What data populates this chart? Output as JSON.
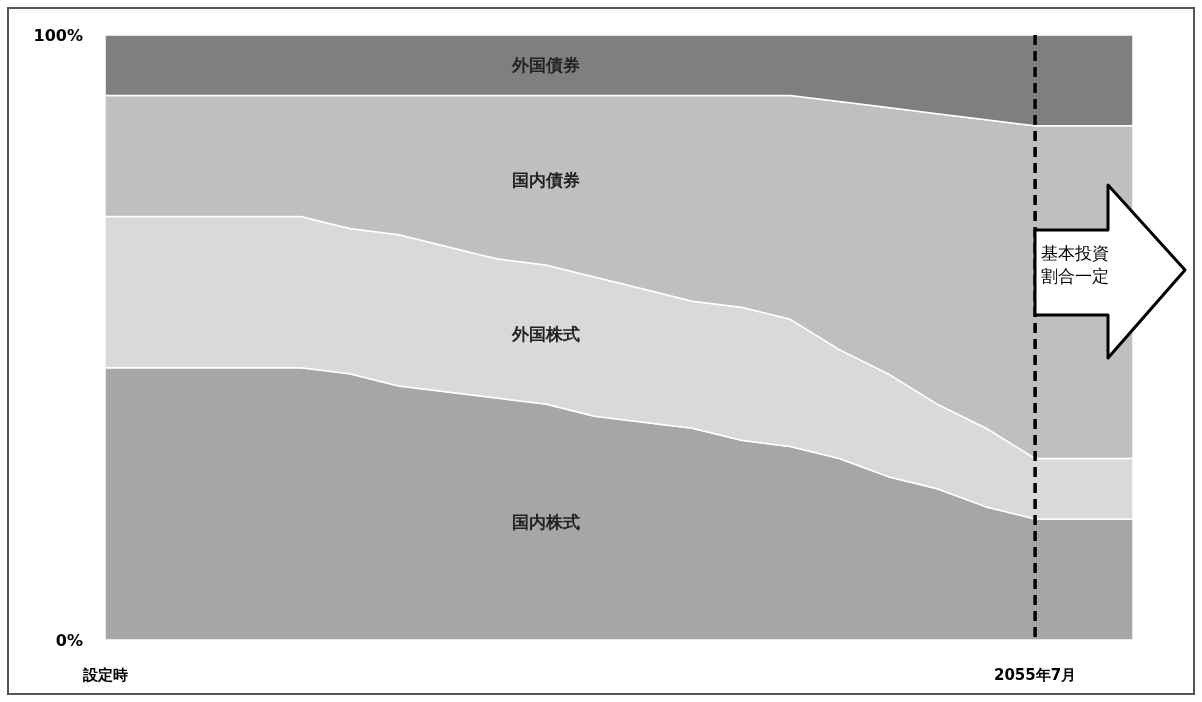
{
  "chart_data": {
    "type": "area",
    "stacked": true,
    "categories": [
      "設定時",
      null,
      null,
      null,
      null,
      null,
      null,
      null,
      null,
      null,
      null,
      null,
      null,
      null,
      null,
      null,
      null,
      null,
      null,
      "2055年7月",
      null,
      null
    ],
    "ylim": [
      0,
      100
    ],
    "yticks": [
      {
        "value": 0,
        "label": "0%"
      },
      {
        "value": 100,
        "label": "100%"
      }
    ],
    "series": [
      {
        "name": "国内株式",
        "color": "#a6a6a6",
        "values": [
          45,
          45,
          45,
          45,
          45,
          44,
          42,
          41,
          40,
          39,
          37,
          36,
          35,
          33,
          32,
          30,
          27,
          25,
          22,
          20,
          20,
          20
        ]
      },
      {
        "name": "外国株式",
        "color": "#d9d9d9",
        "values": [
          25,
          25,
          25,
          25,
          25,
          24,
          25,
          24,
          23,
          23,
          23,
          22,
          21,
          22,
          21,
          18,
          17,
          14,
          13,
          10,
          10,
          10
        ]
      },
      {
        "name": "国内債券",
        "color": "#bfbfbf",
        "values": [
          20,
          20,
          20,
          20,
          20,
          22,
          23,
          25,
          27,
          28,
          30,
          32,
          34,
          35,
          37,
          41,
          44,
          48,
          51,
          55,
          55,
          55
        ]
      },
      {
        "name": "外国債券",
        "color": "#7f7f7f",
        "values": [
          10,
          10,
          10,
          10,
          10,
          10,
          10,
          10,
          10,
          10,
          10,
          10,
          10,
          10,
          10,
          11,
          12,
          13,
          14,
          15,
          15,
          15
        ]
      }
    ],
    "ref_lines": [
      {
        "axis": "x",
        "value": "2055年7月",
        "color": "#000000",
        "line_style": "dashed"
      }
    ],
    "annotations": [
      "基本投資割合一定"
    ],
    "grid": false
  }
}
